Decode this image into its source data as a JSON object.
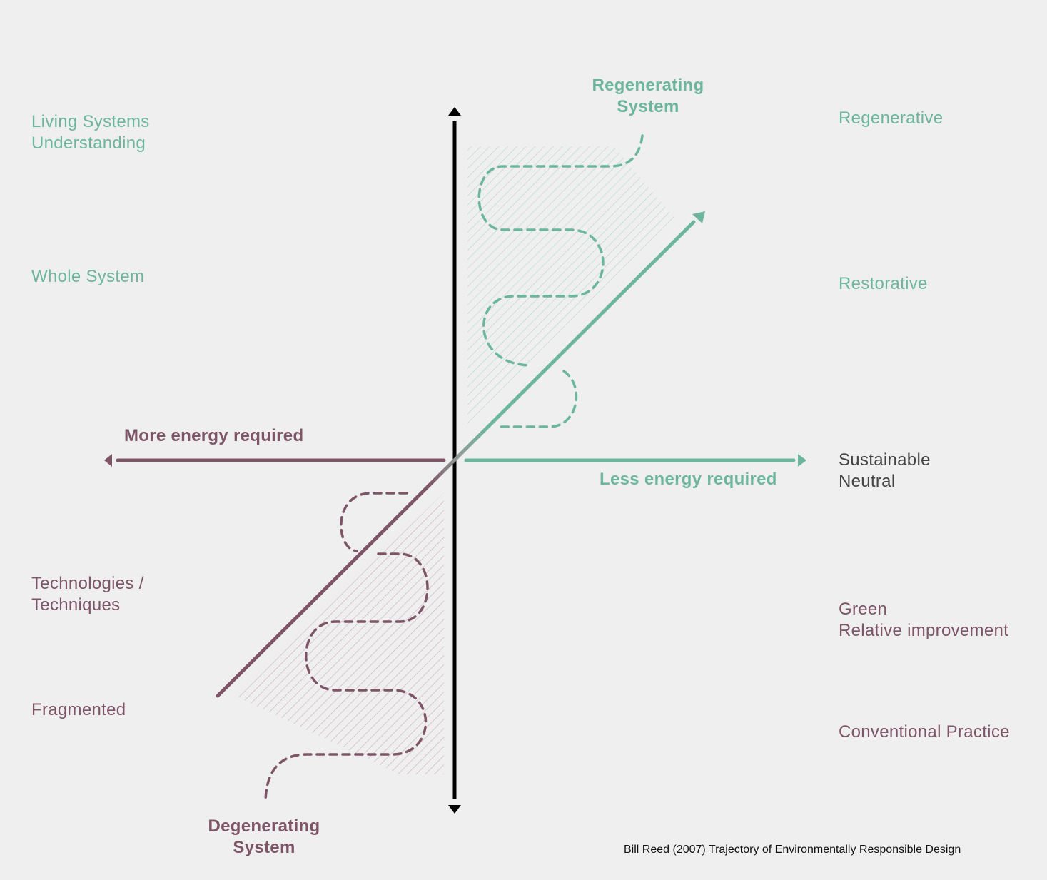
{
  "left_labels": {
    "living_systems": [
      "Living Systems",
      "Understanding"
    ],
    "whole_system": "Whole System",
    "technologies": [
      "Technologies /",
      "Techniques"
    ],
    "fragmented": "Fragmented"
  },
  "right_labels": {
    "regenerative": "Regenerative",
    "restorative": "Restorative",
    "sustainable": [
      "Sustainable",
      "Neutral"
    ],
    "green": [
      "Green",
      "Relative improvement"
    ],
    "conventional": "Conventional Practice"
  },
  "axis_labels": {
    "more_energy": "More energy required",
    "less_energy": "Less energy required"
  },
  "system_labels": {
    "regenerating": [
      "Regenerating",
      "System"
    ],
    "degenerating": [
      "Degenerating",
      "System"
    ]
  },
  "caption": "Bill Reed (2007) Trajectory of Environmentally Responsible Design",
  "colors": {
    "teal": "#6db69e",
    "plum": "#7d5566",
    "axis": "#000000",
    "background": "#efefef"
  }
}
